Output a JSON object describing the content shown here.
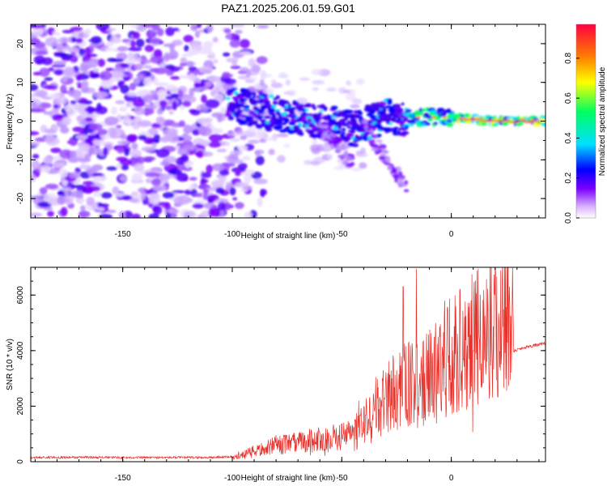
{
  "title": "PAZ1.2025.206.01.59.G01",
  "chart_data": [
    {
      "type": "heatmap",
      "xlabel": "Height of straight line (km)",
      "ylabel": "Frequency (Hz)",
      "xlim": [
        -192,
        43
      ],
      "ylim": [
        -25,
        25
      ],
      "xticks": [
        -150,
        -100,
        -50,
        0
      ],
      "yticks": [
        -20,
        -10,
        0,
        10,
        20
      ],
      "colorbar": {
        "label": "Normalized spectral amplitude",
        "range": [
          0,
          0.97
        ],
        "ticks": [
          0.0,
          0.2,
          0.4,
          0.6,
          0.8
        ],
        "colors": [
          "#ffffff",
          "#d7b0ff",
          "#7a00ff",
          "#0000ff",
          "#00e0ff",
          "#00ff60",
          "#ffff00",
          "#ff8000",
          "#ff0040"
        ]
      },
      "ridge": [
        {
          "x": -100,
          "y": 4
        },
        {
          "x": -80,
          "y": 2
        },
        {
          "x": -60,
          "y": 0
        },
        {
          "x": -45,
          "y": -2
        },
        {
          "x": -30,
          "y": 1
        },
        {
          "x": -15,
          "y": 1
        },
        {
          "x": 0,
          "y": 1
        },
        {
          "x": 20,
          "y": 0
        },
        {
          "x": 43,
          "y": 0
        }
      ]
    },
    {
      "type": "line",
      "xlabel": "Height of straight line (km)",
      "ylabel": "SNR (10 * v/v)",
      "xlim": [
        -192,
        43
      ],
      "ylim": [
        0,
        7000
      ],
      "xticks": [
        -150,
        -100,
        -50,
        0
      ],
      "yticks": [
        0,
        2000,
        4000,
        6000
      ],
      "color": "#e8302a",
      "series": [
        {
          "x": [
            -192,
            -170,
            -150,
            -130,
            -110,
            -100,
            -95,
            -90,
            -85,
            -80,
            -75,
            -70,
            -65,
            -60,
            -55,
            -50,
            -45,
            -40,
            -35,
            -30,
            -25,
            -20,
            -15,
            -10,
            -5,
            0,
            5,
            10,
            15,
            20,
            25,
            28,
            28.5,
            35,
            43
          ],
          "y": [
            150,
            160,
            150,
            150,
            150,
            180,
            300,
            450,
            550,
            700,
            750,
            800,
            900,
            950,
            950,
            1100,
            1300,
            1700,
            2200,
            2800,
            3200,
            3400,
            3300,
            3700,
            4200,
            4700,
            5000,
            5300,
            5600,
            5900,
            6100,
            6300,
            4000,
            4150,
            4250
          ]
        }
      ],
      "spikes": [
        {
          "x": -16,
          "y": 6950
        },
        {
          "x": -22,
          "y": 6300
        },
        {
          "x": -3,
          "y": 5800
        }
      ]
    }
  ]
}
